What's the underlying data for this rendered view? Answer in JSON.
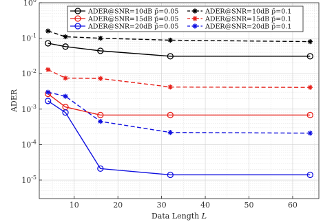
{
  "chart_data": {
    "type": "line",
    "xlabel_text": "Data Length",
    "xlabel_var": "L",
    "ylabel": "ADER",
    "xlim": [
      2,
      66
    ],
    "ylim": [
      3e-06,
      1
    ],
    "yscale": "log",
    "grid": true,
    "legend_position": "top-right",
    "x_ticks": [
      "10",
      "20",
      "30",
      "40",
      "50",
      "60"
    ],
    "y_ticks": [
      {
        "base": "10",
        "exp": "0"
      },
      {
        "base": "10",
        "exp": "-1"
      },
      {
        "base": "10",
        "exp": "-2"
      },
      {
        "base": "10",
        "exp": "-3"
      },
      {
        "base": "10",
        "exp": "-4"
      },
      {
        "base": "10",
        "exp": "-5"
      }
    ],
    "x": [
      4,
      8,
      16,
      32,
      64
    ],
    "series": [
      {
        "name": "ADER@SNR=10dB p̄=0.05",
        "color": "#000000",
        "marker": "circle",
        "dash": "solid",
        "values": [
          0.072,
          0.058,
          0.044,
          0.031,
          0.031
        ]
      },
      {
        "name": "ADER@SNR=15dB p̄=0.05",
        "color": "#e8201a",
        "marker": "circle",
        "dash": "solid",
        "values": [
          0.0027,
          0.00115,
          0.00068,
          0.00068,
          0.00068
        ]
      },
      {
        "name": "ADER@SNR=20dB p̄=0.05",
        "color": "#1010e0",
        "marker": "circle",
        "dash": "solid",
        "values": [
          0.0017,
          0.0008,
          2.1e-05,
          1.4e-05,
          1.4e-05
        ]
      },
      {
        "name": "ADER@SNR=10dB p̄=0.1",
        "color": "#000000",
        "marker": "star",
        "dash": "dashed",
        "values": [
          0.16,
          0.11,
          0.1,
          0.088,
          0.08
        ]
      },
      {
        "name": "ADER@SNR=15dB p̄=0.1",
        "color": "#e8201a",
        "marker": "star",
        "dash": "dashed",
        "values": [
          0.013,
          0.0075,
          0.0073,
          0.0042,
          0.0041
        ]
      },
      {
        "name": "ADER@SNR=20dB p̄=0.1",
        "color": "#1010e0",
        "marker": "star",
        "dash": "dashed",
        "values": [
          0.003,
          0.0023,
          0.00045,
          0.00022,
          0.00021
        ]
      }
    ],
    "legend_order": [
      0,
      3,
      1,
      4,
      2,
      5
    ]
  }
}
